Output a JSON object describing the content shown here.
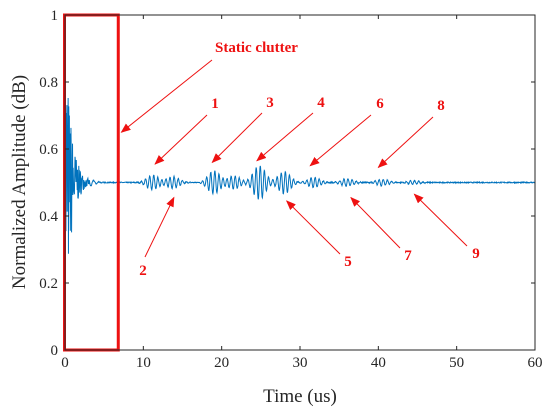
{
  "chart_data": {
    "type": "line",
    "title": "",
    "xlabel": "Time (us)",
    "ylabel": "Normalized Amplitude (dB)",
    "xlim": [
      0,
      60
    ],
    "ylim": [
      0,
      1
    ],
    "xticks": [
      "0",
      "10",
      "20",
      "30",
      "40",
      "50",
      "60"
    ],
    "yticks": [
      "0",
      "0.2",
      "0.4",
      "0.6",
      "0.8",
      "1"
    ],
    "grid": false,
    "baseline": 0.5,
    "series": [
      {
        "color": "#0072BD",
        "clutter_region": [
          0,
          3.2
        ],
        "clutter_peak_amplitude": 0.5,
        "echoes": [
          {
            "center": 11.2,
            "amplitude": 0.022
          },
          {
            "center": 13.8,
            "amplitude": 0.018
          },
          {
            "center": 19.0,
            "amplitude": 0.035
          },
          {
            "center": 21.6,
            "amplitude": 0.02
          },
          {
            "center": 24.8,
            "amplitude": 0.052
          },
          {
            "center": 28.0,
            "amplitude": 0.034
          },
          {
            "center": 31.8,
            "amplitude": 0.016
          },
          {
            "center": 36.0,
            "amplitude": 0.012
          },
          {
            "center": 40.5,
            "amplitude": 0.01
          },
          {
            "center": 44.5,
            "amplitude": 0.006
          }
        ]
      }
    ],
    "highlight_box": {
      "x": [
        0,
        6.8
      ],
      "y": [
        0,
        1
      ],
      "color": "#ee1111"
    },
    "annotations": [
      {
        "label": "Static clutter",
        "target": [
          7.2,
          0.65
        ]
      },
      {
        "label": "1",
        "target": [
          11.5,
          0.555
        ]
      },
      {
        "label": "2",
        "target": [
          13.9,
          0.455
        ]
      },
      {
        "label": "3",
        "target": [
          18.8,
          0.56
        ]
      },
      {
        "label": "4",
        "target": [
          24.5,
          0.565
        ]
      },
      {
        "label": "5",
        "target": [
          28.3,
          0.445
        ]
      },
      {
        "label": "6",
        "target": [
          31.3,
          0.55
        ]
      },
      {
        "label": "7",
        "target": [
          36.5,
          0.455
        ]
      },
      {
        "label": "8",
        "target": [
          40.0,
          0.545
        ]
      },
      {
        "label": "9",
        "target": [
          44.6,
          0.465
        ]
      }
    ],
    "colors": {
      "line": "#0072BD",
      "annotation": "#ee1111",
      "axis": "#262626"
    }
  }
}
